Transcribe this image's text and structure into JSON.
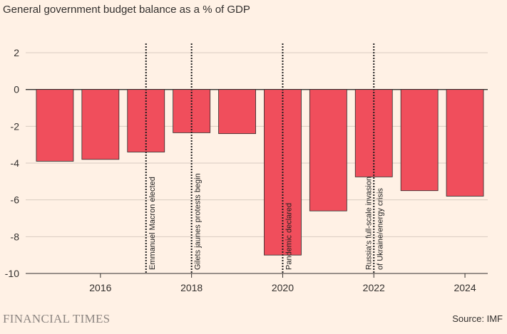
{
  "title": "General government budget balance as a % of GDP",
  "footer": {
    "brand": "FINANCIAL TIMES",
    "source": "Source: IMF"
  },
  "colors": {
    "bar": "#F04E5C",
    "bar_edge": "#2B2B2B",
    "grid": "#D9CCC1",
    "text": "#33302E",
    "background": "#FFF1E5"
  },
  "chart_data": {
    "type": "bar",
    "title": "General government budget balance as a % of GDP",
    "x": [
      2015,
      2016,
      2017,
      2018,
      2019,
      2020,
      2021,
      2022,
      2023,
      2024
    ],
    "values": [
      -3.9,
      -3.8,
      -3.4,
      -2.35,
      -2.4,
      -9.0,
      -6.6,
      -4.75,
      -5.5,
      -5.8
    ],
    "ylim": [
      -10,
      2
    ],
    "yticks": [
      2,
      0,
      -2,
      -4,
      -6,
      -8,
      -10
    ],
    "ytick_labels": [
      "2",
      "0",
      "-2",
      "-4",
      "-6",
      "-8",
      "-10"
    ],
    "xticks": [
      2016,
      2018,
      2020,
      2022,
      2024
    ],
    "xtick_labels": [
      "2016",
      "2018",
      "2020",
      "2022",
      "2024"
    ],
    "xlim": [
      2014.5,
      2024.5
    ],
    "grid": true,
    "annotations": [
      {
        "x": 2017,
        "lines": [
          "Emmanuel Macron elected"
        ]
      },
      {
        "x": 2018,
        "lines": [
          "Gilets jaunes protests begin"
        ]
      },
      {
        "x": 2020,
        "lines": [
          "Pandemic declared"
        ]
      },
      {
        "x": 2022,
        "lines": [
          "Russia's full-scale invasion",
          "of Ukraine/energy crisis"
        ]
      }
    ]
  }
}
